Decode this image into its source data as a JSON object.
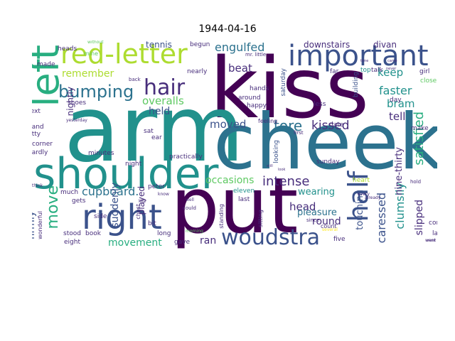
{
  "title": "1944-04-16",
  "colors": {
    "dark_purple": "#440154",
    "purple": "#472d7b",
    "indigo": "#3b528b",
    "steel_blue": "#2c728e",
    "teal": "#21918c",
    "green_teal": "#28ae80",
    "green": "#5ec962",
    "lime": "#addc30",
    "yellow": "#fde725"
  },
  "words": {
    "kiss": "kiss",
    "arm": "arm",
    "cheek": "cheek",
    "put": "put",
    "shoulder": "shoulder",
    "left": "left",
    "important": "important",
    "red_letter": "red-letter",
    "right": "right",
    "hair": "hair",
    "half": "half",
    "woudstra": "woudstra",
    "bumping": "bumping",
    "move": "move",
    "engulfed": "engulfed",
    "cupboard": "cupboard.",
    "tore": "tore",
    "intense": "intense",
    "kissed": "kissed",
    "remember": "remember",
    "held": "held",
    "overalls": "overalls",
    "moved": "moved",
    "beat": "beat",
    "keep": "keep",
    "faster": "faster",
    "bram": "bram",
    "tell": "tell",
    "satisfied": "satisfied",
    "clumsily": "clumsily",
    "caressed": "caressed",
    "slipped": "slipped",
    "round": "round",
    "head": "head",
    "wearing": "wearing",
    "pleasure": "pleasure",
    "touching": "touching",
    "nine_thirty": "nine-thirty",
    "occasions": "occasions",
    "movement": "movement",
    "ran": "ran",
    "suddenly": "suddenly",
    "firmly": "firmly",
    "nightly": "nightly",
    "tennis": "tennis",
    "downstairs": "downstairs",
    "divan": "divan",
    "played": "played",
    "eleven": "eleven",
    "last": "last",
    "sunday": "sunday",
    "heart": "heart",
    "looking": "looking",
    "saturday": "saturday",
    "building": "building",
    "far": "far",
    "talk": "talk",
    "top": "top",
    "girl": "girl",
    "close": "close",
    "day": "day",
    "make": "make",
    "mr_little": "mr. little",
    "around": "around",
    "happy": "happy",
    "hands": "hands",
    "less": "less",
    "feeling": "feeling",
    "date": "date",
    "first": "first",
    "since": "since",
    "count": "count",
    "five": "five",
    "sitting": "sitting",
    "standing": "standing",
    "morning": "morning",
    "lay": "lay",
    "come": "come",
    "went": "went",
    "several": "several",
    "heads": "heads",
    "without": "without",
    "begun": "begun",
    "mine": "mine",
    "made": "made",
    "words": "words",
    "next": "next",
    "hand": "hand",
    "kitty": "kitty",
    "corner": "corner",
    "hardly": "hardly",
    "shoes": "shoes",
    "yesterday": "yesterday",
    "minutes": "minutes",
    "sat": "sat",
    "ear": "ear",
    "night": "night",
    "practically": "practically",
    "peter": "peter",
    "much": "much",
    "gets": "gets",
    "like": "like",
    "side": "side",
    "stood": "stood",
    "eight": "eight",
    "long": "long",
    "gave": "gave",
    "wonderful": "wonderful",
    "back": "back",
    "nearly": "nearly",
    "chest": "chest",
    "bit": "bit",
    "could": "could",
    "well": "well",
    "know": "know",
    "every": "every",
    "already": "already",
    "never": "never",
    "hold": "hold",
    "ment": "ment",
    "think": "think",
    "book": "book",
    "time": "time",
    "came": "came",
    "still": "still",
    "look": "look"
  }
}
